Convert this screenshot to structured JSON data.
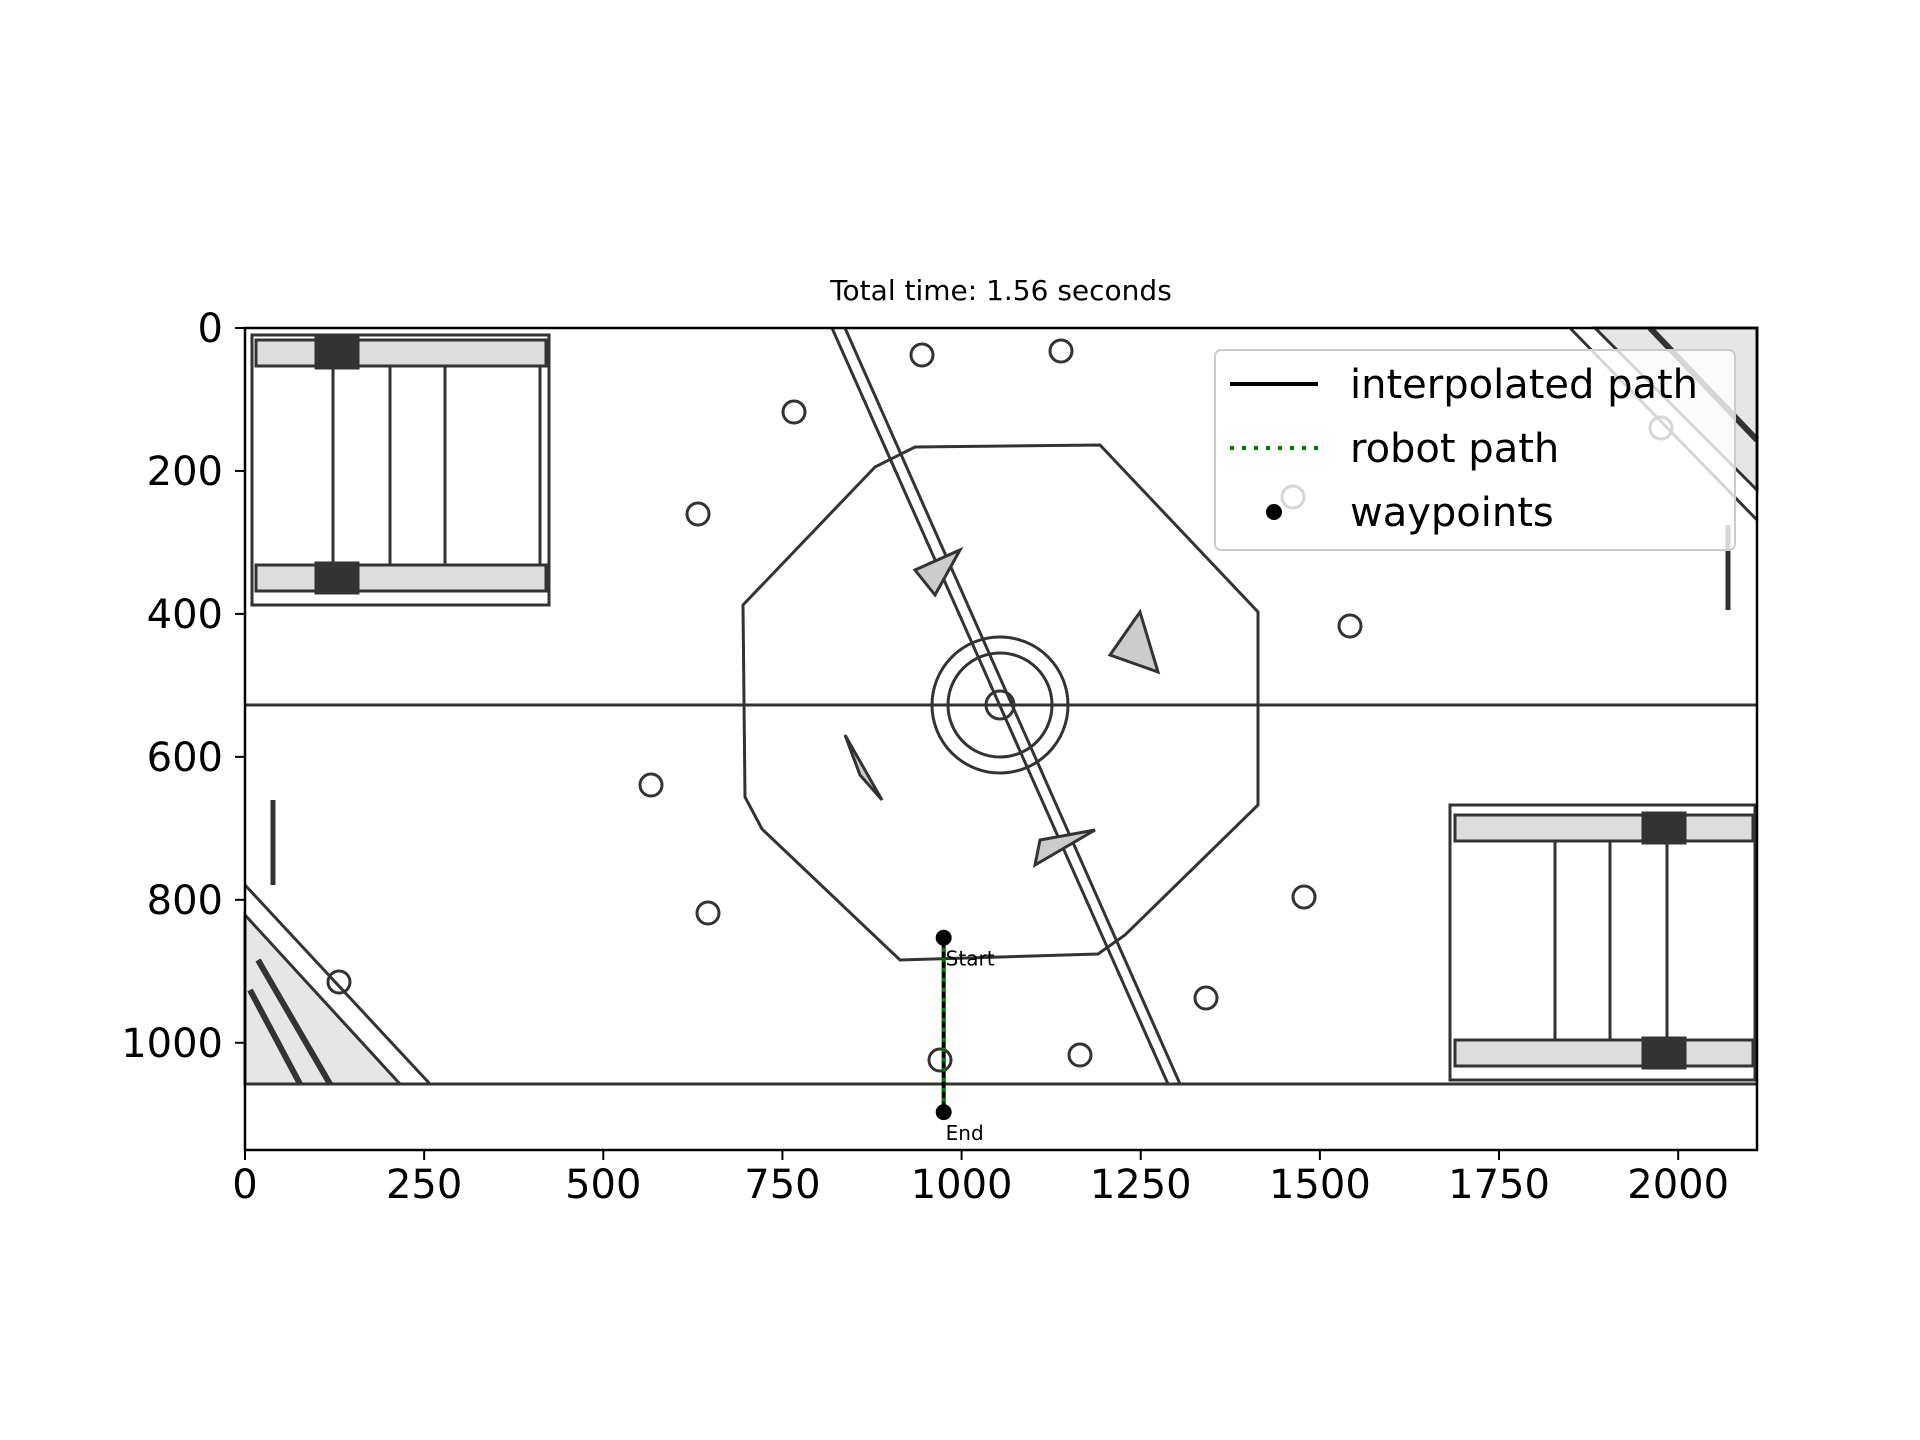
{
  "chart_data": {
    "type": "line",
    "title": "Total time: 1.56 seconds",
    "xlabel": "",
    "ylabel": "",
    "xlim": [
      0,
      2110
    ],
    "ylim": [
      1150,
      0
    ],
    "x_ticks": [
      0,
      250,
      500,
      750,
      1000,
      1250,
      1500,
      1750,
      2000
    ],
    "y_ticks": [
      0,
      200,
      400,
      600,
      800,
      1000
    ],
    "x_tick_labels": [
      "0",
      "250",
      "500",
      "750",
      "1000",
      "1250",
      "1500",
      "1750",
      "2000"
    ],
    "y_tick_labels": [
      "0",
      "200",
      "400",
      "600",
      "800",
      "1000"
    ],
    "grid": false,
    "legend_position": "top-right",
    "background": "grayscale field-map image",
    "series": [
      {
        "name": "interpolated path",
        "style": "solid",
        "color": "#000000",
        "x": [
          975,
          975
        ],
        "y": [
          853,
          1097
        ]
      },
      {
        "name": "robot path",
        "style": "dotted",
        "color": "#008000",
        "x": [
          975,
          975
        ],
        "y": [
          853,
          1097
        ]
      },
      {
        "name": "waypoints",
        "style": "marker",
        "color": "#000000",
        "x": [
          975,
          975
        ],
        "y": [
          853,
          1097
        ]
      }
    ],
    "annotations": [
      {
        "text": "Start",
        "x": 975,
        "y": 853
      },
      {
        "text": "End",
        "x": 975,
        "y": 1097
      }
    ]
  }
}
